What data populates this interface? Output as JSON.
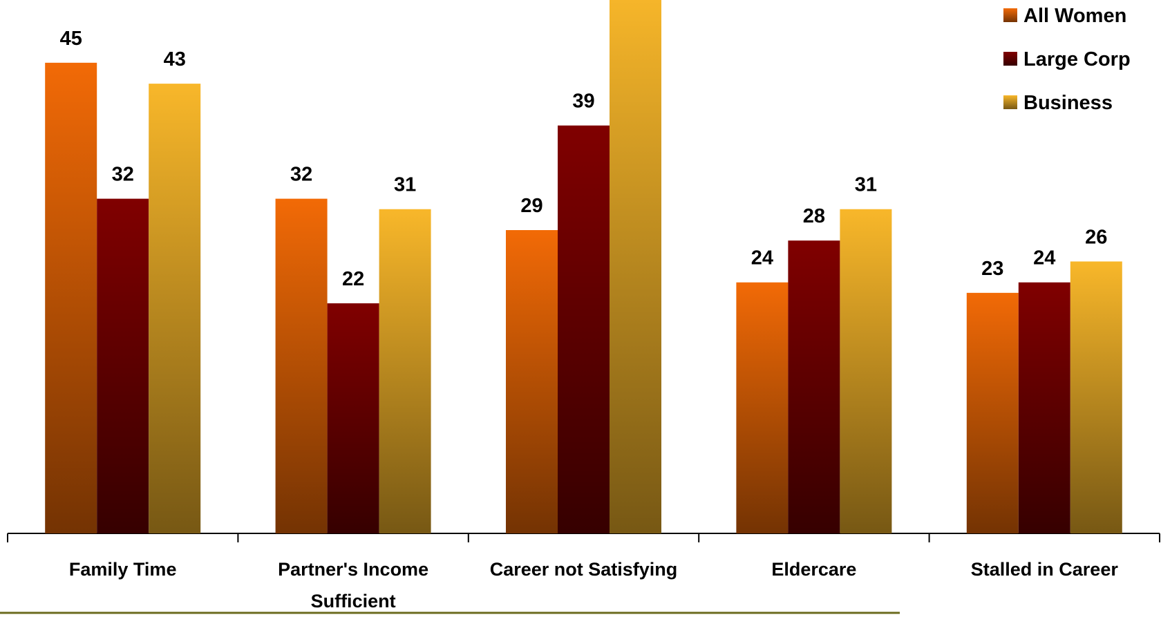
{
  "chart_data": {
    "type": "bar",
    "categories": [
      "Family Time",
      "Partner's Income Sufficient",
      "Career not Satisfying",
      "Eldercare",
      "Stalled in Career"
    ],
    "series": [
      {
        "name": "All Women",
        "color": "#f26a06",
        "values": [
          45,
          32,
          29,
          24,
          23
        ]
      },
      {
        "name": "Large Corp",
        "color": "#800000",
        "values": [
          32,
          22,
          39,
          28,
          24
        ]
      },
      {
        "name": "Business",
        "color": "#f8b72a",
        "values": [
          43,
          31,
          52,
          31,
          26
        ]
      }
    ],
    "ylim": [
      0,
      51
    ],
    "legend": "top-right"
  }
}
